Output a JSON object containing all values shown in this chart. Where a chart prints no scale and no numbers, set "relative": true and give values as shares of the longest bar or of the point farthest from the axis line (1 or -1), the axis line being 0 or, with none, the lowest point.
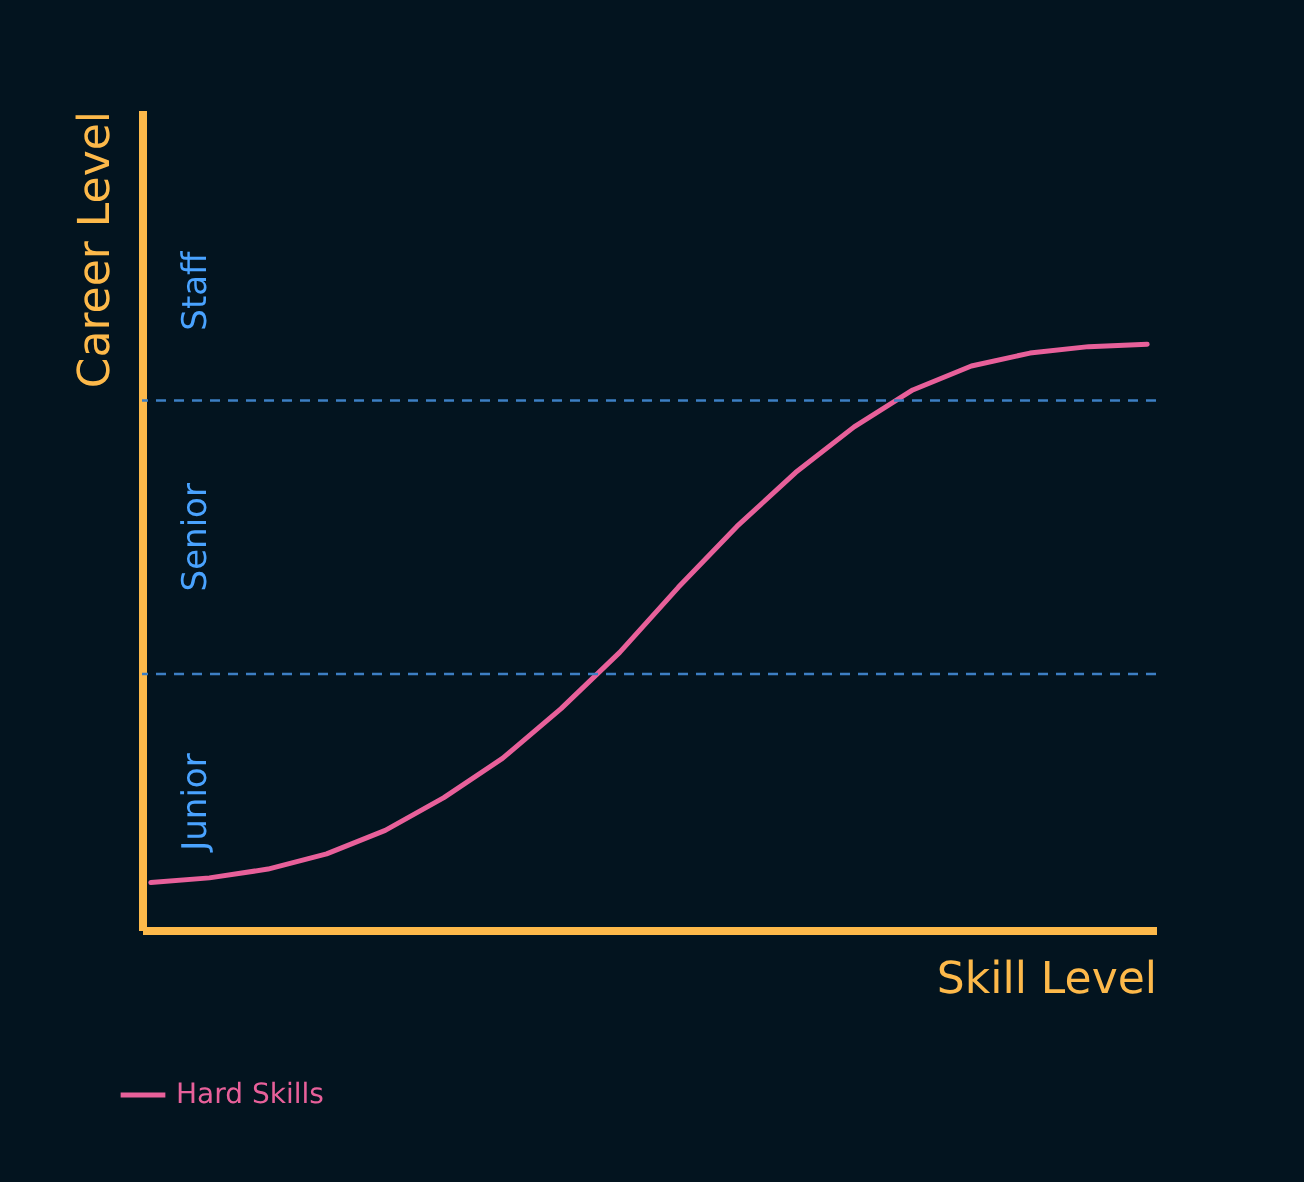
{
  "chart_data": {
    "type": "line",
    "relative": true,
    "xlabel": "Skill Level",
    "ylabel": "Career Level",
    "categories": [
      null,
      null,
      null,
      null,
      null,
      null,
      null,
      null,
      null,
      null,
      null,
      null,
      null,
      null,
      null,
      null,
      null,
      null
    ],
    "series": [
      {
        "name": "Hard Skills",
        "color": "#e8609a",
        "values": [
          0.081,
          0.089,
          0.104,
          0.13,
          0.17,
          0.226,
          0.293,
          0.378,
          0.474,
          0.585,
          0.689,
          0.781,
          0.859,
          0.922,
          0.963,
          0.985,
          0.996,
          1
        ]
      }
    ],
    "ref_lines": [
      {
        "axis": "y",
        "value": 0.437,
        "color": "#3d7fc4",
        "line_style": "dashed"
      },
      {
        "axis": "y",
        "value": 0.904,
        "color": "#3d7fc4",
        "line_style": "dashed"
      }
    ],
    "annotations": [
      "Junior",
      "Senior",
      "Staff"
    ],
    "tick_labels": false,
    "grid": false,
    "legend": "bottom left",
    "marker": "none",
    "line_style": "solid"
  }
}
